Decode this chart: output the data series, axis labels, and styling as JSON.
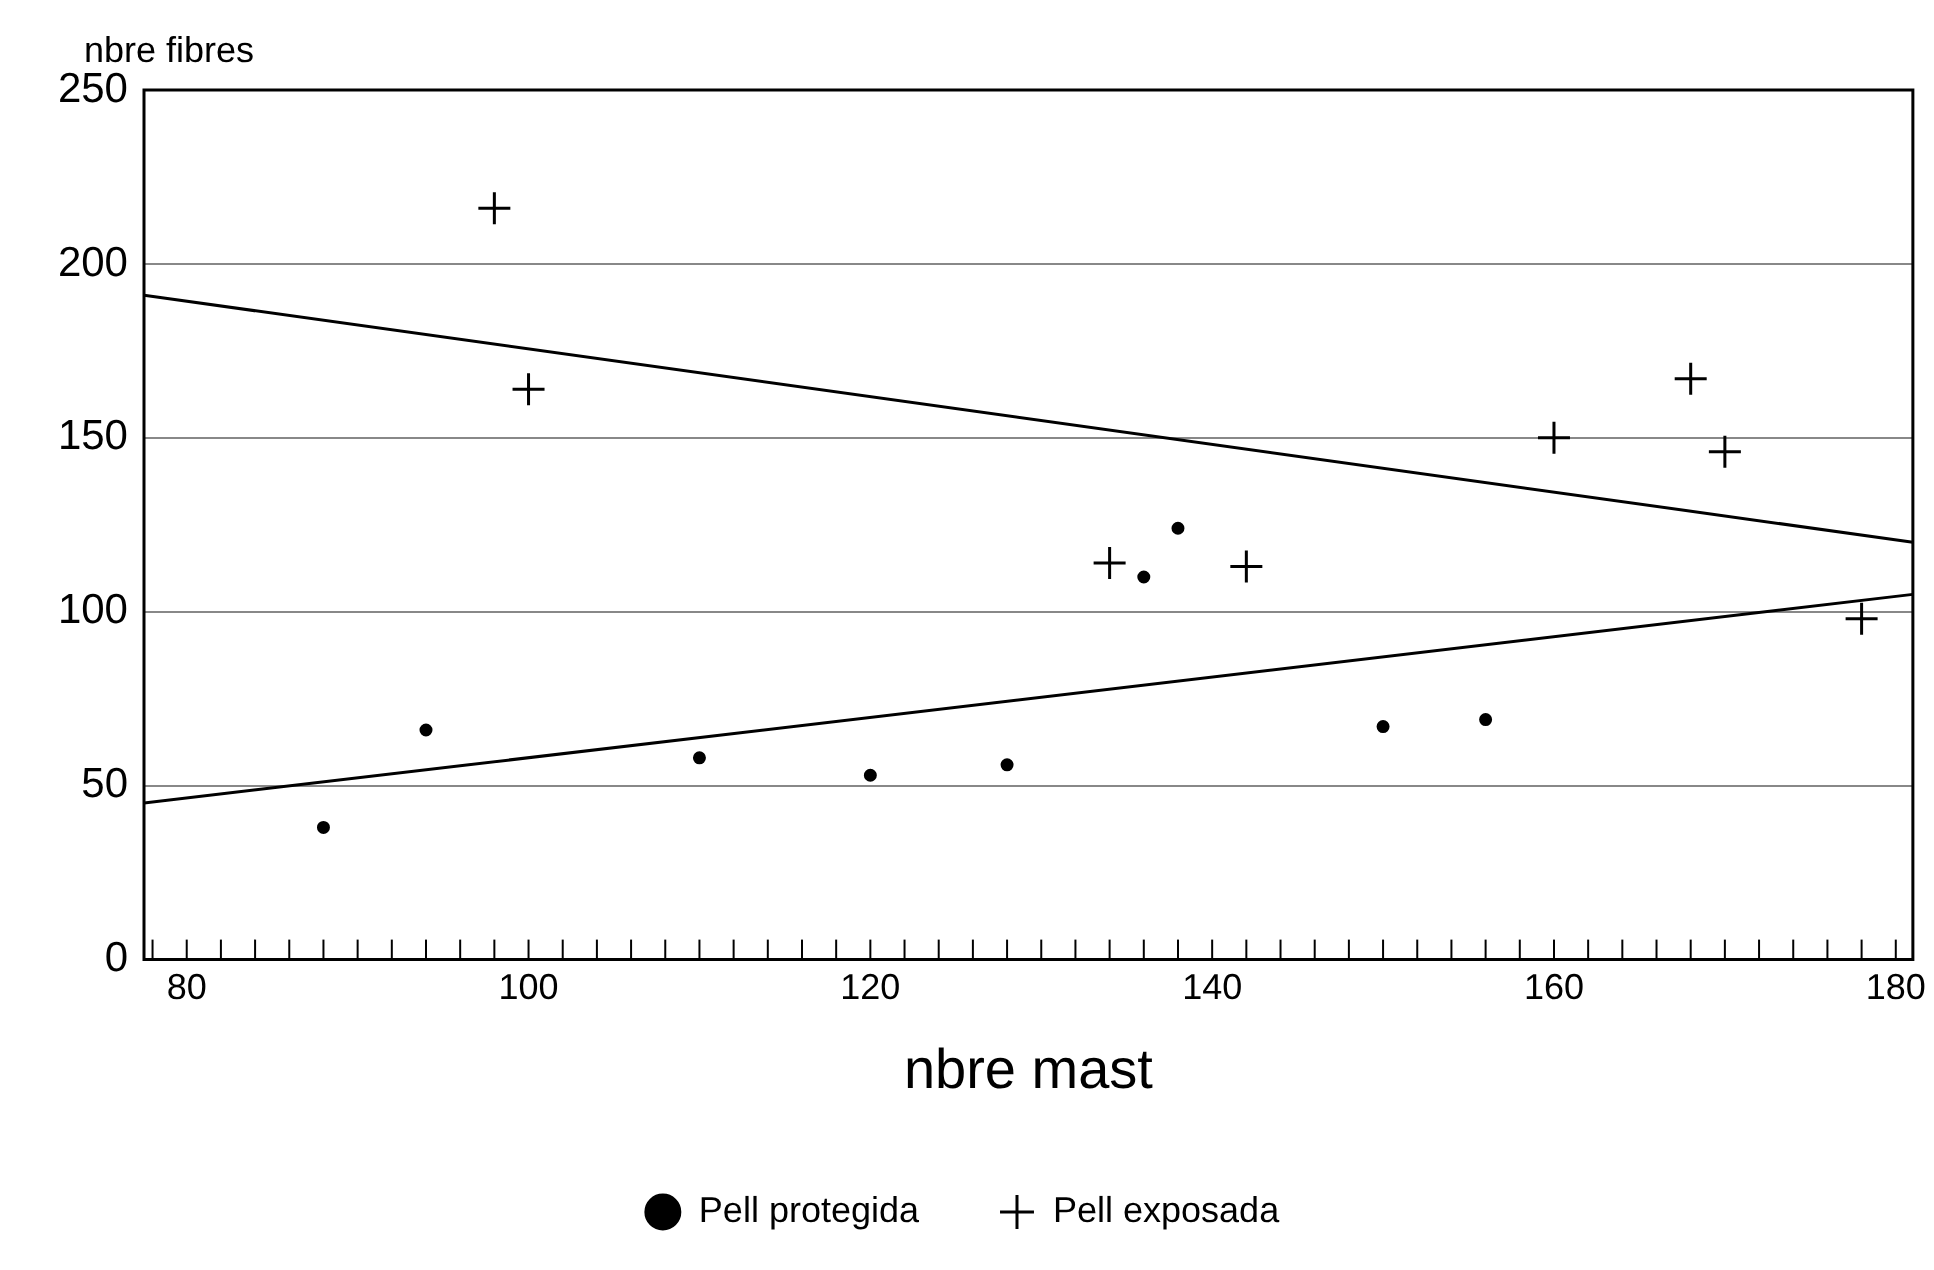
{
  "chart_data": {
    "type": "scatter",
    "xlabel": "nbre mast",
    "ylabel": "nbre fibres",
    "xlim": [
      77.5,
      181
    ],
    "ylim": [
      0,
      250
    ],
    "xticks": [
      {
        "value": 78,
        "label": null
      },
      80,
      {
        "value": 82,
        "label": null
      },
      {
        "value": 84,
        "label": null
      },
      {
        "value": 86,
        "label": null
      },
      {
        "value": 88,
        "label": null
      },
      {
        "value": 90,
        "label": null
      },
      {
        "value": 92,
        "label": null
      },
      {
        "value": 94,
        "label": null
      },
      {
        "value": 96,
        "label": null
      },
      {
        "value": 98,
        "label": null
      },
      100,
      {
        "value": 102,
        "label": null
      },
      {
        "value": 104,
        "label": null
      },
      {
        "value": 106,
        "label": null
      },
      {
        "value": 108,
        "label": null
      },
      {
        "value": 110,
        "label": null
      },
      {
        "value": 112,
        "label": null
      },
      {
        "value": 114,
        "label": null
      },
      {
        "value": 116,
        "label": null
      },
      {
        "value": 118,
        "label": null
      },
      120,
      {
        "value": 122,
        "label": null
      },
      {
        "value": 124,
        "label": null
      },
      {
        "value": 126,
        "label": null
      },
      {
        "value": 128,
        "label": null
      },
      {
        "value": 130,
        "label": null
      },
      {
        "value": 132,
        "label": null
      },
      {
        "value": 134,
        "label": null
      },
      {
        "value": 136,
        "label": null
      },
      {
        "value": 138,
        "label": null
      },
      140,
      {
        "value": 142,
        "label": null
      },
      {
        "value": 144,
        "label": null
      },
      {
        "value": 146,
        "label": null
      },
      {
        "value": 148,
        "label": null
      },
      {
        "value": 150,
        "label": null
      },
      {
        "value": 152,
        "label": null
      },
      {
        "value": 154,
        "label": null
      },
      {
        "value": 156,
        "label": null
      },
      {
        "value": 158,
        "label": null
      },
      160,
      {
        "value": 162,
        "label": null
      },
      {
        "value": 164,
        "label": null
      },
      {
        "value": 166,
        "label": null
      },
      {
        "value": 168,
        "label": null
      },
      {
        "value": 170,
        "label": null
      },
      {
        "value": 172,
        "label": null
      },
      {
        "value": 174,
        "label": null
      },
      {
        "value": 176,
        "label": null
      },
      {
        "value": 178,
        "label": null
      },
      180
    ],
    "yticks": [
      0,
      50,
      100,
      150,
      200,
      250
    ],
    "grid": "y",
    "legend": "bottom",
    "series": [
      {
        "name": "Pell protegida",
        "marker": "circle",
        "color": "#000000",
        "x": [
          88,
          94,
          110,
          120,
          128,
          136,
          138,
          150,
          156
        ],
        "values": [
          38,
          66,
          58,
          53,
          56,
          110,
          124,
          67,
          69
        ]
      },
      {
        "name": "Pell exposada",
        "marker": "cross",
        "color": "#000000",
        "x": [
          98,
          100,
          134,
          142,
          160,
          168,
          170,
          178
        ],
        "values": [
          216,
          164,
          114,
          113,
          150,
          167,
          146,
          98
        ]
      },
      {
        "type": "line",
        "marker": "none",
        "color": "#000000",
        "x": [
          77.5,
          181
        ],
        "values": [
          45,
          105
        ]
      },
      {
        "type": "line",
        "marker": "none",
        "color": "#000000",
        "x": [
          77.5,
          181
        ],
        "values": [
          191,
          120
        ]
      }
    ]
  }
}
